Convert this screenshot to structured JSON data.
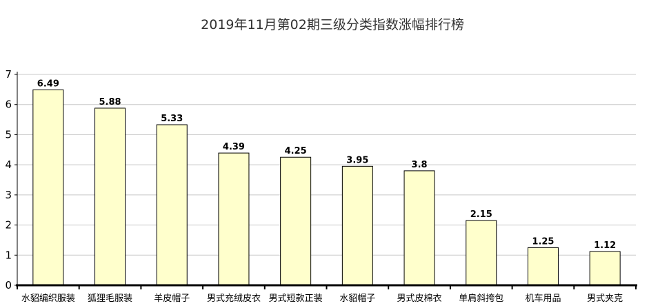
{
  "chart_data": {
    "type": "bar",
    "title": "2019年11月第02期三级分类指数涨幅排行榜",
    "xlabel": "",
    "ylabel": "",
    "categories": [
      "水貂编织服装",
      "狐狸毛服装",
      "羊皮帽子",
      "男式充绒皮衣",
      "男式短款正装",
      "水貂帽子",
      "男式皮棉衣",
      "单肩斜挎包",
      "机车用品",
      "男式夹克"
    ],
    "values": [
      6.49,
      5.88,
      5.33,
      4.39,
      4.25,
      3.95,
      3.8,
      2.15,
      1.25,
      1.12
    ],
    "value_labels": [
      "6.49",
      "5.88",
      "5.33",
      "4.39",
      "4.25",
      "3.95",
      "3.8",
      "2.15",
      "1.25",
      "1.12"
    ],
    "ylim": [
      0,
      7
    ],
    "yticks": [
      "0",
      "1",
      "2",
      "3",
      "4",
      "5",
      "6",
      "7"
    ],
    "grid": true,
    "legend": "none",
    "colors": {
      "bar_fill": "#FFFFCC",
      "bar_stroke": "#000000",
      "grid": "#C8C8C8",
      "axis": "#000000"
    }
  }
}
